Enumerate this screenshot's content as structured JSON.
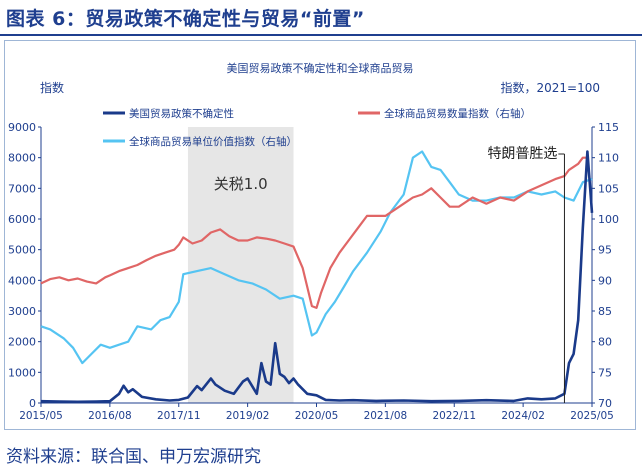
{
  "figure": {
    "title": "图表 6：贸易政策不确定性与贸易“前置”",
    "source": "资料来源：联合国、申万宏源研究"
  },
  "colors": {
    "heading": "#1f3f8f",
    "epu": "#1a3a8a",
    "volume": "#e06666",
    "value": "#55c4f2",
    "shade": "#e6e6e6",
    "axis": "#1f3f8f"
  },
  "chart_data": {
    "type": "line",
    "title": "美国贸易政策不确定性和全球商品贸易",
    "y_left_label": "指数",
    "y_right_label": "指数，2021=100",
    "y_left_lim": [
      0,
      9000
    ],
    "y_left_ticks": [
      0,
      1000,
      2000,
      3000,
      4000,
      5000,
      6000,
      7000,
      8000,
      9000
    ],
    "y_right_lim": [
      70,
      115
    ],
    "y_right_ticks": [
      70,
      75,
      80,
      85,
      90,
      95,
      100,
      105,
      110,
      115
    ],
    "x_range": [
      "2015-05",
      "2025-05"
    ],
    "x_ticks": [
      "2015/05",
      "2016/08",
      "2017/11",
      "2019/02",
      "2020/05",
      "2021/08",
      "2022/11",
      "2024/02",
      "2025/05"
    ],
    "legend_placement": "top",
    "shaded_period": {
      "label": "关税1.0",
      "start": "2018-01",
      "end": "2019-12"
    },
    "annotations": [
      {
        "text": "特朗普胜选",
        "x": "2024-11"
      }
    ],
    "series": [
      {
        "name": "美国贸易政策不确定性",
        "axis": "left",
        "points": [
          [
            "2015-05",
            60
          ],
          [
            "2015-09",
            50
          ],
          [
            "2016-01",
            40
          ],
          [
            "2016-05",
            50
          ],
          [
            "2016-08",
            60
          ],
          [
            "2016-10",
            300
          ],
          [
            "2016-11",
            560
          ],
          [
            "2016-12",
            350
          ],
          [
            "2017-01",
            450
          ],
          [
            "2017-03",
            200
          ],
          [
            "2017-06",
            120
          ],
          [
            "2017-09",
            80
          ],
          [
            "2017-11",
            100
          ],
          [
            "2018-01",
            180
          ],
          [
            "2018-03",
            550
          ],
          [
            "2018-04",
            420
          ],
          [
            "2018-06",
            800
          ],
          [
            "2018-07",
            600
          ],
          [
            "2018-09",
            400
          ],
          [
            "2018-11",
            300
          ],
          [
            "2019-01",
            700
          ],
          [
            "2019-02",
            800
          ],
          [
            "2019-04",
            300
          ],
          [
            "2019-05",
            1300
          ],
          [
            "2019-06",
            700
          ],
          [
            "2019-07",
            600
          ],
          [
            "2019-08",
            1950
          ],
          [
            "2019-09",
            950
          ],
          [
            "2019-10",
            850
          ],
          [
            "2019-11",
            650
          ],
          [
            "2019-12",
            800
          ],
          [
            "2020-01",
            600
          ],
          [
            "2020-03",
            300
          ],
          [
            "2020-05",
            250
          ],
          [
            "2020-07",
            100
          ],
          [
            "2020-10",
            80
          ],
          [
            "2021-01",
            90
          ],
          [
            "2021-06",
            70
          ],
          [
            "2021-12",
            80
          ],
          [
            "2022-06",
            60
          ],
          [
            "2022-12",
            70
          ],
          [
            "2023-06",
            90
          ],
          [
            "2023-12",
            70
          ],
          [
            "2024-03",
            150
          ],
          [
            "2024-06",
            120
          ],
          [
            "2024-09",
            150
          ],
          [
            "2024-11",
            300
          ],
          [
            "2024-12",
            1300
          ],
          [
            "2025-01",
            1600
          ],
          [
            "2025-02",
            2700
          ],
          [
            "2025-03",
            5700
          ],
          [
            "2025-04",
            8200
          ],
          [
            "2025-05",
            6200
          ]
        ]
      },
      {
        "name": "全球商品贸易数量指数（右轴）",
        "axis": "right",
        "points": [
          [
            "2015-05",
            89.5
          ],
          [
            "2015-07",
            90.2
          ],
          [
            "2015-09",
            90.5
          ],
          [
            "2015-11",
            90.0
          ],
          [
            "2016-01",
            90.3
          ],
          [
            "2016-03",
            89.8
          ],
          [
            "2016-05",
            89.5
          ],
          [
            "2016-07",
            90.5
          ],
          [
            "2016-08",
            90.8
          ],
          [
            "2016-10",
            91.5
          ],
          [
            "2016-12",
            92.0
          ],
          [
            "2017-02",
            92.5
          ],
          [
            "2017-04",
            93.3
          ],
          [
            "2017-06",
            94.0
          ],
          [
            "2017-08",
            94.5
          ],
          [
            "2017-10",
            95.0
          ],
          [
            "2017-11",
            95.8
          ],
          [
            "2017-12",
            97.0
          ],
          [
            "2018-02",
            96.0
          ],
          [
            "2018-04",
            96.5
          ],
          [
            "2018-06",
            97.8
          ],
          [
            "2018-08",
            98.3
          ],
          [
            "2018-10",
            97.2
          ],
          [
            "2018-12",
            96.5
          ],
          [
            "2019-02",
            96.5
          ],
          [
            "2019-04",
            97.0
          ],
          [
            "2019-06",
            96.8
          ],
          [
            "2019-08",
            96.5
          ],
          [
            "2019-10",
            96.0
          ],
          [
            "2019-12",
            95.5
          ],
          [
            "2020-02",
            92.0
          ],
          [
            "2020-04",
            85.8
          ],
          [
            "2020-05",
            85.5
          ],
          [
            "2020-06",
            88.0
          ],
          [
            "2020-08",
            92.0
          ],
          [
            "2020-10",
            94.5
          ],
          [
            "2020-12",
            96.5
          ],
          [
            "2021-02",
            98.5
          ],
          [
            "2021-04",
            100.5
          ],
          [
            "2021-08",
            100.5
          ],
          [
            "2021-10",
            101.5
          ],
          [
            "2021-12",
            102.5
          ],
          [
            "2022-02",
            103.5
          ],
          [
            "2022-04",
            104.0
          ],
          [
            "2022-06",
            105.0
          ],
          [
            "2022-08",
            103.5
          ],
          [
            "2022-10",
            102.0
          ],
          [
            "2022-12",
            102.0
          ],
          [
            "2023-03",
            103.5
          ],
          [
            "2023-06",
            102.5
          ],
          [
            "2023-09",
            103.5
          ],
          [
            "2023-12",
            103.0
          ],
          [
            "2024-03",
            104.5
          ],
          [
            "2024-06",
            105.5
          ],
          [
            "2024-09",
            106.5
          ],
          [
            "2024-11",
            107.0
          ],
          [
            "2024-12",
            108.0
          ],
          [
            "2025-02",
            109.0
          ],
          [
            "2025-03",
            110.0
          ],
          [
            "2025-04",
            110.0
          ]
        ]
      },
      {
        "name": "全球商品贸易单位价值指数（右轴）",
        "axis": "right",
        "points": [
          [
            "2015-05",
            82.5
          ],
          [
            "2015-07",
            82.0
          ],
          [
            "2015-10",
            80.5
          ],
          [
            "2015-12",
            79.0
          ],
          [
            "2016-02",
            76.5
          ],
          [
            "2016-04",
            78.0
          ],
          [
            "2016-06",
            79.5
          ],
          [
            "2016-08",
            79.0
          ],
          [
            "2016-10",
            79.5
          ],
          [
            "2016-12",
            80.0
          ],
          [
            "2017-02",
            82.5
          ],
          [
            "2017-05",
            82.0
          ],
          [
            "2017-07",
            83.5
          ],
          [
            "2017-09",
            84.0
          ],
          [
            "2017-11",
            86.5
          ],
          [
            "2017-12",
            91.0
          ],
          [
            "2018-03",
            91.5
          ],
          [
            "2018-06",
            92.0
          ],
          [
            "2018-09",
            91.0
          ],
          [
            "2018-12",
            90.0
          ],
          [
            "2019-03",
            89.5
          ],
          [
            "2019-06",
            88.5
          ],
          [
            "2019-09",
            87.0
          ],
          [
            "2019-12",
            87.5
          ],
          [
            "2020-02",
            87.0
          ],
          [
            "2020-04",
            81.0
          ],
          [
            "2020-05",
            81.5
          ],
          [
            "2020-07",
            84.5
          ],
          [
            "2020-09",
            86.5
          ],
          [
            "2020-11",
            89.0
          ],
          [
            "2021-01",
            91.5
          ],
          [
            "2021-04",
            94.5
          ],
          [
            "2021-07",
            98.0
          ],
          [
            "2021-09",
            101.0
          ],
          [
            "2021-12",
            104.0
          ],
          [
            "2022-02",
            110.0
          ],
          [
            "2022-04",
            111.0
          ],
          [
            "2022-06",
            108.5
          ],
          [
            "2022-08",
            108.0
          ],
          [
            "2022-10",
            106.0
          ],
          [
            "2022-12",
            104.0
          ],
          [
            "2023-03",
            103.0
          ],
          [
            "2023-06",
            103.0
          ],
          [
            "2023-09",
            103.5
          ],
          [
            "2023-12",
            103.5
          ],
          [
            "2024-03",
            104.5
          ],
          [
            "2024-06",
            104.0
          ],
          [
            "2024-09",
            104.5
          ],
          [
            "2024-11",
            103.5
          ],
          [
            "2025-01",
            103.0
          ],
          [
            "2025-03",
            106.0
          ],
          [
            "2025-05",
            106.5
          ]
        ]
      }
    ]
  }
}
